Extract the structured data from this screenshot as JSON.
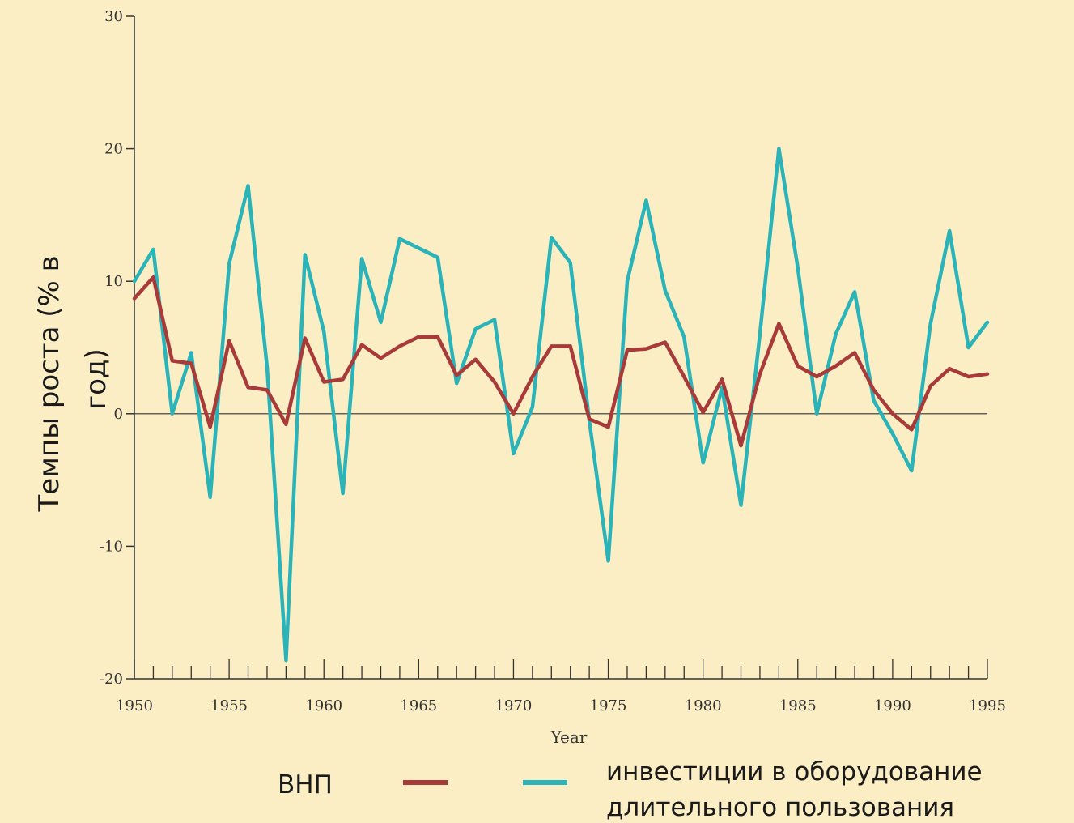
{
  "chart_data": {
    "type": "line",
    "title": "",
    "xlabel": "Year",
    "ylabel": "Темпы роста (% в год)",
    "ylabel_lines": [
      "Темпы роста (% в",
      "год)"
    ],
    "xlim": [
      1950,
      1995
    ],
    "ylim": [
      -20,
      30
    ],
    "x_ticks": [
      1950,
      1955,
      1960,
      1965,
      1970,
      1975,
      1980,
      1985,
      1990,
      1995
    ],
    "y_ticks": [
      -20,
      -10,
      0,
      10,
      20,
      30
    ],
    "grid": false,
    "legend_position": "bottom",
    "x": [
      1950,
      1951,
      1952,
      1953,
      1954,
      1955,
      1956,
      1957,
      1958,
      1959,
      1960,
      1961,
      1962,
      1963,
      1964,
      1965,
      1966,
      1967,
      1968,
      1969,
      1970,
      1971,
      1972,
      1973,
      1974,
      1975,
      1976,
      1977,
      1978,
      1979,
      1980,
      1981,
      1982,
      1983,
      1984,
      1985,
      1986,
      1987,
      1988,
      1989,
      1990,
      1991,
      1992,
      1993,
      1994,
      1995
    ],
    "series": [
      {
        "name": "ВНП",
        "color": "#a83a3a",
        "values": [
          8.7,
          10.3,
          4.0,
          3.8,
          -1.0,
          5.5,
          2.0,
          1.8,
          -0.8,
          5.7,
          2.4,
          2.6,
          5.2,
          4.2,
          5.1,
          5.8,
          5.8,
          2.9,
          4.1,
          2.4,
          0.0,
          2.8,
          5.1,
          5.1,
          -0.4,
          -1.0,
          4.8,
          4.9,
          5.4,
          2.8,
          0.1,
          2.6,
          -2.4,
          3.0,
          6.8,
          3.6,
          2.8,
          3.6,
          4.6,
          1.8,
          0.0,
          -1.2,
          2.1,
          3.4,
          2.8,
          3.0
        ]
      },
      {
        "name": "инвестиции в оборудование длительного пользования",
        "name_lines": [
          "инвестиции в оборудование",
          "длительного пользования"
        ],
        "color": "#2ab3b8",
        "values": [
          10.0,
          12.4,
          0.0,
          4.6,
          -6.3,
          11.3,
          17.2,
          3.5,
          -18.6,
          12.0,
          6.2,
          -6.0,
          11.7,
          6.9,
          13.2,
          12.5,
          11.8,
          2.3,
          6.4,
          7.1,
          -3.0,
          0.5,
          13.3,
          11.4,
          -0.5,
          -11.1,
          10.0,
          16.1,
          9.3,
          5.8,
          -3.7,
          2.0,
          -6.9,
          6.0,
          20.0,
          11.0,
          0.0,
          6.0,
          9.2,
          1.0,
          -1.5,
          -4.3,
          6.8,
          13.8,
          5.0,
          6.9
        ]
      }
    ]
  }
}
